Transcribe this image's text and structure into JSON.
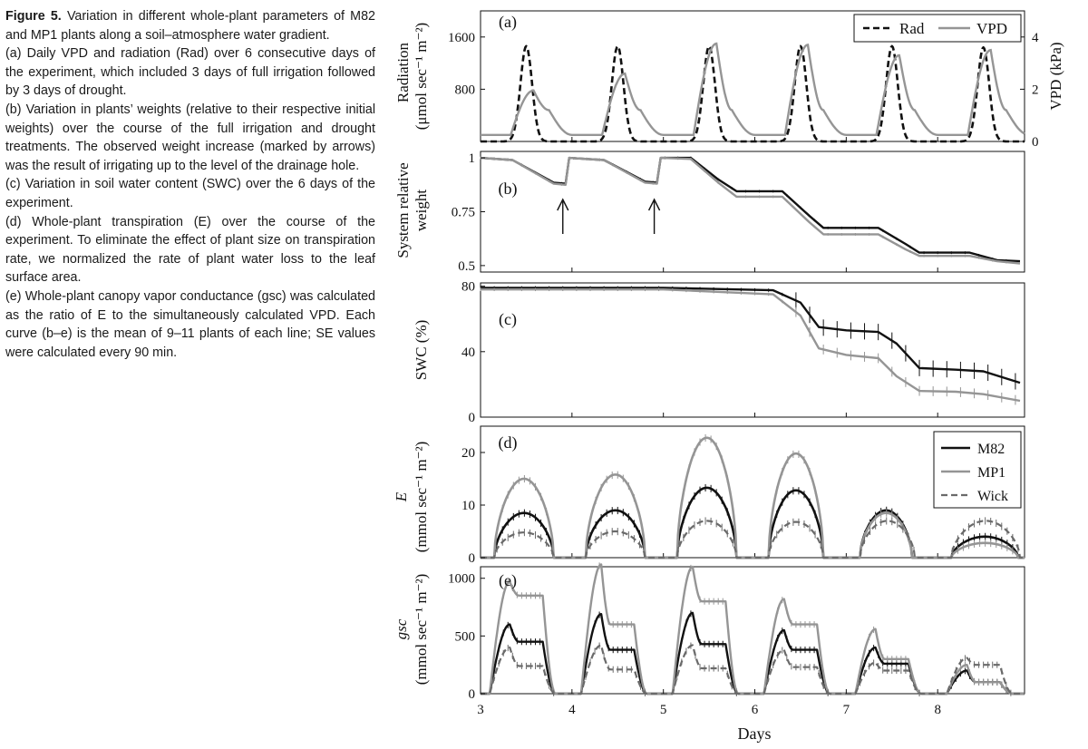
{
  "caption": {
    "figure_label": "Figure 5.",
    "intro": "Variation in different whole-plant parameters of M82 and MP1 plants along a soil–atmosphere water gradient.",
    "items": [
      "(a) Daily VPD and radiation (Rad) over 6 consecutive days of the experiment, which included 3 days of full irrigation followed by 3 days of drought.",
      "(b) Variation in plants’ weights (relative to their respective initial weights) over the course of the full irrigation and drought treatments. The observed weight increase (marked by arrows) was the result of irrigating up to the level of the drainage hole.",
      "(c) Variation in soil water content (SWC) over the 6 days of the experiment.",
      "(d) Whole-plant transpiration (E) over the course of the experiment. To eliminate the effect of plant size on transpiration rate, we normalized the rate of plant water loss to the leaf surface area.",
      "(e) Whole-plant canopy vapor conductance (gsc) was calculated as the ratio of E to the simultaneously calculated VPD. Each curve (b–e) is the mean of 9–11 plants of each line; SE values were calculated every 90 min."
    ]
  },
  "colors": {
    "rad": "#111111",
    "vpd": "#959595",
    "m82": "#111111",
    "mp1": "#959595",
    "wick": "#6a6a6a"
  },
  "chart_data": [
    {
      "type": "line",
      "panel_label": "(a)",
      "xlabel": "",
      "ylabel_lines": [
        "Radiation",
        "(μmol sec⁻¹ m⁻²)"
      ],
      "y2label": "VPD (kPa)",
      "xlim": [
        3,
        8.95
      ],
      "ylim": [
        0,
        2000
      ],
      "y2lim": [
        0,
        5
      ],
      "yticks": [
        800,
        1600
      ],
      "y2ticks": [
        0,
        2,
        4
      ],
      "legend": [
        "Rad",
        "VPD"
      ],
      "legend_position": "top-right",
      "day_starts": [
        3,
        4,
        5,
        6,
        7,
        8
      ],
      "series": [
        {
          "name": "Rad",
          "axis": "left",
          "style": "dashed",
          "daily_peak": [
            1460,
            1460,
            1460,
            1460,
            1460,
            1440
          ],
          "peak_offset": 0.5
        },
        {
          "name": "VPD",
          "axis": "right",
          "style": "solid",
          "baseline": 0.25,
          "daily_peak": [
            1.95,
            2.6,
            3.75,
            3.7,
            3.3,
            3.5
          ],
          "peak_offset": 0.58
        }
      ]
    },
    {
      "type": "line",
      "panel_label": "(b)",
      "ylabel_lines": [
        "System relative",
        "weight"
      ],
      "xlim": [
        3,
        8.95
      ],
      "ylim": [
        0.47,
        1.03
      ],
      "yticks": [
        0.5,
        0.75,
        1
      ],
      "ytick_labels": [
        "0.5",
        "0.75",
        "1"
      ],
      "annotations": [
        "arrow at day 3.9",
        "arrow at day 4.9"
      ],
      "series": [
        {
          "name": "M82",
          "points": [
            [
              3.0,
              1.0
            ],
            [
              3.35,
              0.99
            ],
            [
              3.8,
              0.885
            ],
            [
              3.93,
              0.88
            ],
            [
              3.97,
              1.0
            ],
            [
              4.35,
              0.99
            ],
            [
              4.8,
              0.89
            ],
            [
              4.93,
              0.885
            ],
            [
              4.97,
              1.0
            ],
            [
              5.3,
              1.0
            ],
            [
              5.6,
              0.9
            ],
            [
              5.8,
              0.845
            ],
            [
              6.3,
              0.845
            ],
            [
              6.6,
              0.73
            ],
            [
              6.75,
              0.675
            ],
            [
              7.35,
              0.675
            ],
            [
              7.65,
              0.6
            ],
            [
              7.8,
              0.56
            ],
            [
              8.35,
              0.56
            ],
            [
              8.65,
              0.525
            ],
            [
              8.9,
              0.52
            ]
          ]
        },
        {
          "name": "MP1",
          "points": [
            [
              3.0,
              1.0
            ],
            [
              3.35,
              0.99
            ],
            [
              3.8,
              0.88
            ],
            [
              3.93,
              0.875
            ],
            [
              3.97,
              1.0
            ],
            [
              4.35,
              0.99
            ],
            [
              4.8,
              0.885
            ],
            [
              4.93,
              0.88
            ],
            [
              4.97,
              1.0
            ],
            [
              5.3,
              0.995
            ],
            [
              5.6,
              0.885
            ],
            [
              5.8,
              0.82
            ],
            [
              6.3,
              0.82
            ],
            [
              6.6,
              0.7
            ],
            [
              6.75,
              0.645
            ],
            [
              7.35,
              0.645
            ],
            [
              7.65,
              0.575
            ],
            [
              7.8,
              0.545
            ],
            [
              8.35,
              0.545
            ],
            [
              8.65,
              0.52
            ],
            [
              8.9,
              0.51
            ]
          ]
        }
      ]
    },
    {
      "type": "line",
      "panel_label": "(c)",
      "ylabel": "SWC (%)",
      "xlim": [
        3,
        8.95
      ],
      "ylim": [
        0,
        82
      ],
      "yticks": [
        0,
        40,
        80
      ],
      "series": [
        {
          "name": "M82",
          "points": [
            [
              3.0,
              79
            ],
            [
              5.0,
              79
            ],
            [
              6.2,
              77.5
            ],
            [
              6.5,
              70
            ],
            [
              6.7,
              55
            ],
            [
              7.0,
              53
            ],
            [
              7.35,
              52
            ],
            [
              7.55,
              45
            ],
            [
              7.8,
              30
            ],
            [
              8.2,
              29
            ],
            [
              8.5,
              28
            ],
            [
              8.9,
              21
            ]
          ]
        },
        {
          "name": "MP1",
          "points": [
            [
              3.0,
              78
            ],
            [
              5.0,
              78
            ],
            [
              6.2,
              75
            ],
            [
              6.5,
              62
            ],
            [
              6.7,
              42
            ],
            [
              7.0,
              38
            ],
            [
              7.35,
              36
            ],
            [
              7.55,
              25
            ],
            [
              7.8,
              16
            ],
            [
              8.2,
              15.5
            ],
            [
              8.5,
              14
            ],
            [
              8.9,
              10
            ]
          ]
        }
      ]
    },
    {
      "type": "line",
      "panel_label": "(d)",
      "ylabel_lines": [
        "E",
        "(mmol sec⁻¹ m⁻²)"
      ],
      "xlim": [
        3,
        8.95
      ],
      "ylim": [
        0,
        25
      ],
      "yticks": [
        0,
        10,
        20
      ],
      "legend": [
        "M82",
        "MP1",
        "Wick"
      ],
      "legend_position": "top-right",
      "day_starts": [
        3,
        4,
        5,
        6,
        7,
        8
      ],
      "series": [
        {
          "name": "M82",
          "style": "solid",
          "daily_peak": [
            8.5,
            9.0,
            13.3,
            12.8,
            9.0,
            4.0
          ],
          "peak_day_offset": [
            0.45,
            0.45,
            0.52,
            0.5,
            0.35,
            0.3
          ],
          "day_end_offset": [
            0.8,
            0.8,
            0.8,
            0.75,
            0.72,
            0.88
          ]
        },
        {
          "name": "MP1",
          "style": "solid",
          "daily_peak": [
            15.0,
            15.8,
            22.8,
            19.8,
            8.5,
            2.8
          ],
          "peak_day_offset": [
            0.45,
            0.45,
            0.52,
            0.5,
            0.35,
            0.3
          ],
          "day_end_offset": [
            0.8,
            0.8,
            0.8,
            0.75,
            0.72,
            0.88
          ]
        },
        {
          "name": "Wick",
          "style": "dashed",
          "daily_peak": [
            4.8,
            5.0,
            7.0,
            6.8,
            7.0,
            7.0
          ],
          "peak_day_offset": [
            0.45,
            0.45,
            0.52,
            0.5,
            0.45,
            0.6
          ],
          "day_end_offset": [
            0.8,
            0.8,
            0.8,
            0.75,
            0.75,
            0.9
          ]
        }
      ]
    },
    {
      "type": "line",
      "panel_label": "(e)",
      "ylabel_lines": [
        "gsc",
        "(mmol sec⁻¹ m⁻²)"
      ],
      "xlabel": "Days",
      "xlim": [
        3,
        8.95
      ],
      "ylim": [
        0,
        1100
      ],
      "yticks": [
        0,
        500,
        1000
      ],
      "xticks": [
        3,
        4,
        5,
        6,
        7,
        8
      ],
      "day_starts": [
        3,
        4,
        5,
        6,
        7,
        8
      ],
      "series": [
        {
          "name": "M82",
          "daily_peak": [
            600,
            690,
            700,
            550,
            400,
            200
          ],
          "daily_plateau": [
            450,
            380,
            430,
            380,
            260,
            100
          ]
        },
        {
          "name": "MP1",
          "daily_peak": [
            970,
            1120,
            1100,
            820,
            560,
            250
          ],
          "daily_plateau": [
            850,
            600,
            800,
            600,
            300,
            100
          ]
        },
        {
          "name": "Wick",
          "daily_peak": [
            400,
            420,
            420,
            380,
            270,
            310
          ],
          "daily_plateau": [
            240,
            210,
            220,
            230,
            200,
            250
          ]
        }
      ]
    }
  ]
}
